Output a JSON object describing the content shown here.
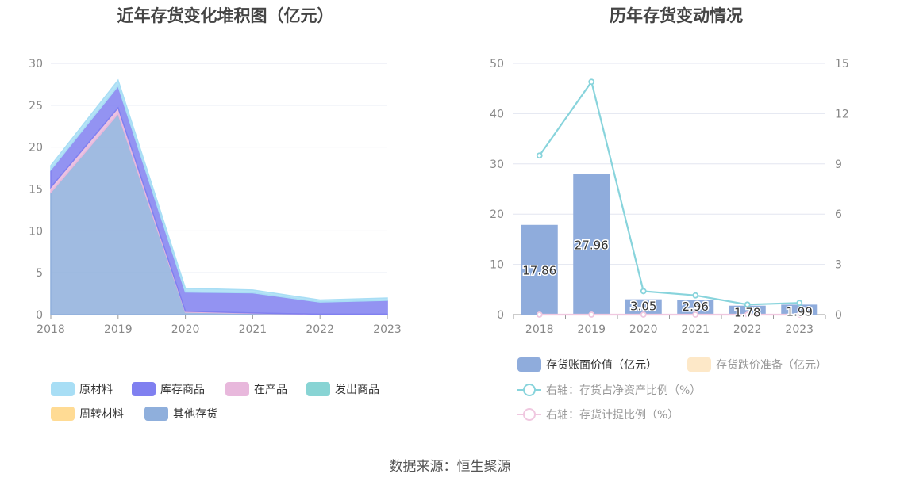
{
  "source_label": "数据来源：恒生聚源",
  "colors": {
    "raw_material": "#a8def5",
    "stock_goods": "#8080f0",
    "wip": "#e8b8dc",
    "shipped": "#88d4d4",
    "revolving": "#ffdb94",
    "other": "#8fafdc",
    "bar_book": "#8facdc",
    "bar_provision": "#fde8c8",
    "line_ratio": "#88d4dc",
    "line_provision": "#f0c8e0"
  },
  "chart_data": [
    {
      "type": "area",
      "title": "近年存货变化堆积图（亿元）",
      "x": [
        "2018",
        "2019",
        "2020",
        "2021",
        "2022",
        "2023"
      ],
      "ylim": [
        0,
        30
      ],
      "yticks": [
        "0",
        "5",
        "10",
        "15",
        "20",
        "25",
        "30"
      ],
      "stacked": true,
      "series": [
        {
          "name": "其他存货",
          "color_key": "other",
          "values": [
            14.6,
            24.0,
            0.3,
            0.15,
            0.05,
            0.05
          ]
        },
        {
          "name": "周转材料",
          "color_key": "revolving",
          "values": [
            0.0,
            0.0,
            0.0,
            0.0,
            0.0,
            0.0
          ]
        },
        {
          "name": "发出商品",
          "color_key": "shipped",
          "values": [
            0.0,
            0.0,
            0.0,
            0.0,
            0.0,
            0.0
          ]
        },
        {
          "name": "在产品",
          "color_key": "wip",
          "values": [
            0.6,
            0.7,
            0.1,
            0.05,
            0.0,
            0.0
          ]
        },
        {
          "name": "库存商品",
          "color_key": "stock_goods",
          "values": [
            2.1,
            2.6,
            2.3,
            2.4,
            1.45,
            1.65
          ]
        },
        {
          "name": "原材料",
          "color_key": "raw_material",
          "values": [
            0.5,
            0.7,
            0.45,
            0.35,
            0.25,
            0.29
          ]
        }
      ],
      "legend": [
        "原材料",
        "库存商品",
        "在产品",
        "发出商品",
        "周转材料",
        "其他存货"
      ],
      "legend_position": "bottom",
      "grid": true
    },
    {
      "type": "bar",
      "title": "历年存货变动情况",
      "categories": [
        "2018",
        "2019",
        "2020",
        "2021",
        "2022",
        "2023"
      ],
      "ylim": [
        0,
        50
      ],
      "yticks": [
        "0",
        "10",
        "20",
        "30",
        "40",
        "50"
      ],
      "y2lim": [
        0,
        15
      ],
      "y2ticks": [
        "0",
        "3",
        "6",
        "9",
        "12",
        "15"
      ],
      "series": [
        {
          "name": "存货账面价值（亿元）",
          "kind": "bar",
          "axis": "left",
          "values": [
            17.86,
            27.96,
            3.05,
            2.96,
            1.78,
            1.99
          ],
          "labels": [
            "17.86",
            "27.96",
            "3.05",
            "2.96",
            "1.78",
            "1.99"
          ]
        },
        {
          "name": "存货跌价准备（亿元）",
          "kind": "bar",
          "axis": "left",
          "values": [
            0,
            0,
            0,
            0,
            0,
            0
          ]
        },
        {
          "name": "右轴：存货占净资产比例（%）",
          "kind": "line",
          "axis": "right",
          "values": [
            9.5,
            13.9,
            1.4,
            1.15,
            0.6,
            0.7
          ]
        },
        {
          "name": "右轴：存货计提比例（%）",
          "kind": "line",
          "axis": "right",
          "values": [
            0,
            0,
            0,
            0,
            0,
            0
          ]
        }
      ],
      "legend_position": "bottom",
      "grid": true
    }
  ]
}
